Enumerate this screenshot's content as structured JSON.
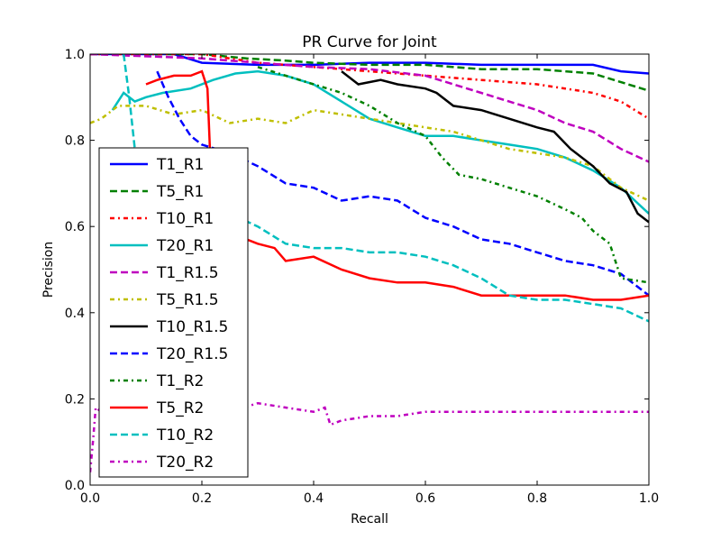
{
  "chart_data": {
    "type": "line",
    "title": "PR Curve for Joint",
    "xlabel": "Recall",
    "ylabel": "Precision",
    "xlim": [
      0.0,
      1.0
    ],
    "ylim": [
      0.0,
      1.0
    ],
    "xticks": [
      "0.0",
      "0.2",
      "0.4",
      "0.6",
      "0.8",
      "1.0"
    ],
    "yticks": [
      "0.0",
      "0.2",
      "0.4",
      "0.6",
      "0.8",
      "1.0"
    ],
    "grid": false,
    "legend_position": "left",
    "series": [
      {
        "name": "T1_R1",
        "color": "#0000ff",
        "dash": "solid",
        "x": [
          0.0,
          0.03,
          0.05,
          0.08,
          0.1,
          0.12,
          0.15,
          0.2,
          0.3,
          0.4,
          0.5,
          0.6,
          0.7,
          0.8,
          0.9,
          0.95,
          1.0
        ],
        "y": [
          1.0,
          1.0,
          1.0,
          1.0,
          1.0,
          1.0,
          1.0,
          0.98,
          0.975,
          0.975,
          0.98,
          0.98,
          0.975,
          0.975,
          0.975,
          0.96,
          0.955
        ]
      },
      {
        "name": "T5_R1",
        "color": "#008000",
        "dash": "dashed",
        "x": [
          0.0,
          0.1,
          0.2,
          0.28,
          0.35,
          0.4,
          0.5,
          0.6,
          0.7,
          0.8,
          0.9,
          0.95,
          1.0
        ],
        "y": [
          1.0,
          1.0,
          1.0,
          0.99,
          0.985,
          0.98,
          0.975,
          0.975,
          0.965,
          0.965,
          0.955,
          0.935,
          0.915
        ]
      },
      {
        "name": "T10_R1",
        "color": "#ff0000",
        "dash": "dashdot",
        "x": [
          0.0,
          0.2,
          0.3,
          0.4,
          0.5,
          0.6,
          0.7,
          0.8,
          0.9,
          0.95,
          1.0
        ],
        "y": [
          1.0,
          1.0,
          0.98,
          0.97,
          0.96,
          0.95,
          0.94,
          0.93,
          0.91,
          0.89,
          0.85
        ]
      },
      {
        "name": "T20_R1",
        "color": "#00bfbf",
        "dash": "solid",
        "x": [
          0.04,
          0.06,
          0.08,
          0.1,
          0.13,
          0.18,
          0.22,
          0.26,
          0.3,
          0.35,
          0.4,
          0.45,
          0.5,
          0.55,
          0.6,
          0.65,
          0.7,
          0.75,
          0.8,
          0.85,
          0.9,
          0.95,
          1.0
        ],
        "y": [
          0.87,
          0.91,
          0.89,
          0.9,
          0.91,
          0.92,
          0.94,
          0.955,
          0.96,
          0.95,
          0.93,
          0.89,
          0.85,
          0.83,
          0.81,
          0.81,
          0.8,
          0.79,
          0.78,
          0.76,
          0.73,
          0.69,
          0.63
        ]
      },
      {
        "name": "T1_R1.5",
        "color": "#bf00bf",
        "dash": "dashed",
        "x": [
          0.0,
          0.2,
          0.3,
          0.4,
          0.5,
          0.6,
          0.65,
          0.7,
          0.75,
          0.8,
          0.85,
          0.9,
          0.95,
          1.0
        ],
        "y": [
          1.0,
          0.99,
          0.98,
          0.97,
          0.965,
          0.95,
          0.93,
          0.91,
          0.89,
          0.87,
          0.84,
          0.82,
          0.78,
          0.75
        ]
      },
      {
        "name": "T5_R1.5",
        "color": "#bfbf00",
        "dash": "dashdot",
        "x": [
          0.0,
          0.02,
          0.05,
          0.08,
          0.1,
          0.15,
          0.2,
          0.25,
          0.3,
          0.35,
          0.4,
          0.45,
          0.5,
          0.55,
          0.6,
          0.65,
          0.7,
          0.75,
          0.8,
          0.85,
          0.9,
          0.95,
          1.0
        ],
        "y": [
          0.84,
          0.85,
          0.88,
          0.88,
          0.88,
          0.86,
          0.87,
          0.84,
          0.85,
          0.84,
          0.87,
          0.86,
          0.85,
          0.84,
          0.83,
          0.82,
          0.8,
          0.78,
          0.77,
          0.76,
          0.74,
          0.69,
          0.66
        ]
      },
      {
        "name": "T10_R1.5",
        "color": "#000000",
        "dash": "solid",
        "x": [
          0.45,
          0.48,
          0.52,
          0.55,
          0.6,
          0.62,
          0.65,
          0.7,
          0.75,
          0.8,
          0.83,
          0.86,
          0.9,
          0.93,
          0.96,
          0.98,
          1.0
        ],
        "y": [
          0.96,
          0.93,
          0.94,
          0.93,
          0.92,
          0.91,
          0.88,
          0.87,
          0.85,
          0.83,
          0.82,
          0.78,
          0.74,
          0.7,
          0.68,
          0.63,
          0.61
        ]
      },
      {
        "name": "T20_R1.5",
        "color": "#0000ff",
        "dash": "dashed",
        "x": [
          0.12,
          0.14,
          0.16,
          0.18,
          0.2,
          0.25,
          0.3,
          0.35,
          0.4,
          0.45,
          0.5,
          0.55,
          0.6,
          0.65,
          0.7,
          0.75,
          0.8,
          0.85,
          0.9,
          0.95,
          1.0
        ],
        "y": [
          0.96,
          0.9,
          0.85,
          0.81,
          0.79,
          0.77,
          0.74,
          0.7,
          0.69,
          0.66,
          0.67,
          0.66,
          0.62,
          0.6,
          0.57,
          0.56,
          0.54,
          0.52,
          0.51,
          0.49,
          0.44
        ]
      },
      {
        "name": "T1_R2",
        "color": "#008000",
        "dash": "dashdot",
        "x": [
          0.3,
          0.35,
          0.4,
          0.45,
          0.5,
          0.55,
          0.6,
          0.63,
          0.66,
          0.7,
          0.75,
          0.8,
          0.85,
          0.88,
          0.9,
          0.93,
          0.95,
          1.0
        ],
        "y": [
          0.97,
          0.95,
          0.93,
          0.91,
          0.88,
          0.84,
          0.81,
          0.76,
          0.72,
          0.71,
          0.69,
          0.67,
          0.64,
          0.62,
          0.59,
          0.56,
          0.48,
          0.47
        ]
      },
      {
        "name": "T5_R2",
        "color": "#ff0000",
        "dash": "solid",
        "x": [
          0.1,
          0.12,
          0.15,
          0.18,
          0.2,
          0.21,
          0.22,
          0.25,
          0.28,
          0.3,
          0.33,
          0.35,
          0.4,
          0.45,
          0.5,
          0.55,
          0.6,
          0.65,
          0.7,
          0.75,
          0.8,
          0.85,
          0.9,
          0.95,
          1.0
        ],
        "y": [
          0.93,
          0.94,
          0.95,
          0.95,
          0.96,
          0.92,
          0.6,
          0.58,
          0.57,
          0.56,
          0.55,
          0.52,
          0.53,
          0.5,
          0.48,
          0.47,
          0.47,
          0.46,
          0.44,
          0.44,
          0.44,
          0.44,
          0.43,
          0.43,
          0.44
        ]
      },
      {
        "name": "T10_R2",
        "color": "#00bfbf",
        "dash": "dashed",
        "x": [
          0.06,
          0.07,
          0.08,
          0.1,
          0.15,
          0.2,
          0.25,
          0.3,
          0.35,
          0.4,
          0.45,
          0.5,
          0.55,
          0.6,
          0.65,
          0.7,
          0.75,
          0.8,
          0.85,
          0.9,
          0.95,
          1.0
        ],
        "y": [
          1.0,
          0.9,
          0.78,
          0.7,
          0.66,
          0.64,
          0.63,
          0.6,
          0.56,
          0.55,
          0.55,
          0.54,
          0.54,
          0.53,
          0.51,
          0.48,
          0.44,
          0.43,
          0.43,
          0.42,
          0.41,
          0.38
        ]
      },
      {
        "name": "T20_R2",
        "color": "#bf00bf",
        "dash": "dashdot",
        "x": [
          0.0,
          0.005,
          0.01,
          0.02,
          0.05,
          0.1,
          0.15,
          0.2,
          0.25,
          0.3,
          0.35,
          0.4,
          0.42,
          0.43,
          0.45,
          0.5,
          0.55,
          0.6,
          0.65,
          0.7,
          0.75,
          0.8,
          0.85,
          0.9,
          0.95,
          1.0
        ],
        "y": [
          0.03,
          0.1,
          0.18,
          0.17,
          0.17,
          0.18,
          0.17,
          0.16,
          0.17,
          0.19,
          0.18,
          0.17,
          0.18,
          0.14,
          0.15,
          0.16,
          0.16,
          0.17,
          0.17,
          0.17,
          0.17,
          0.17,
          0.17,
          0.17,
          0.17,
          0.17
        ]
      }
    ]
  }
}
